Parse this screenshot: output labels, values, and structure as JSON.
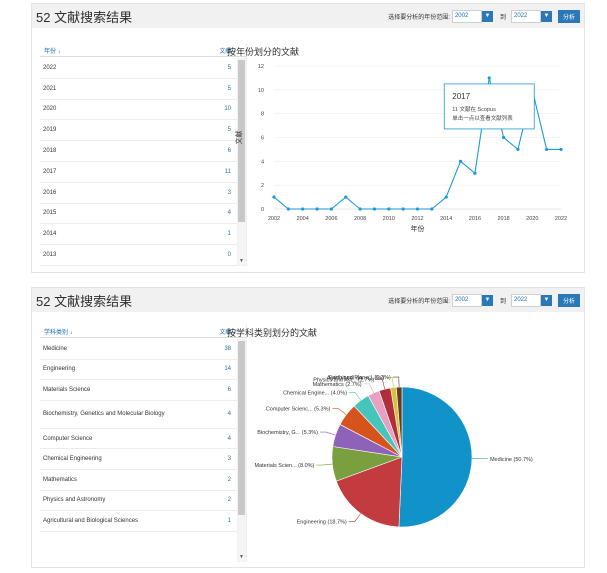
{
  "panel1": {
    "title": "52 文献搜索结果",
    "range_label": "选择要分析的年份范围:",
    "range_from": "2002",
    "range_to_label": "到",
    "range_to": "2022",
    "analyze_label": "分析",
    "col_label": "年份",
    "col_count": "文献",
    "sort_down_icon": "arrow-down",
    "sort_up_icon": "arrow-up",
    "rows": [
      {
        "label": "2022",
        "count": "5"
      },
      {
        "label": "2021",
        "count": "5"
      },
      {
        "label": "2020",
        "count": "10"
      },
      {
        "label": "2019",
        "count": "5"
      },
      {
        "label": "2018",
        "count": "6"
      },
      {
        "label": "2017",
        "count": "11"
      },
      {
        "label": "2016",
        "count": "3"
      },
      {
        "label": "2015",
        "count": "4"
      },
      {
        "label": "2014",
        "count": "1"
      },
      {
        "label": "2013",
        "count": "0"
      }
    ],
    "chart_title": "按年份划分的文献",
    "tooltip": {
      "year": "2017",
      "line1": "11 文献在 Scopus",
      "line2": "单击一点以查看文献列表"
    }
  },
  "panel2": {
    "title": "52 文献搜索结果",
    "range_label": "选择要分析的年份范围:",
    "range_from": "2002",
    "range_to_label": "到",
    "range_to": "2022",
    "analyze_label": "分析",
    "col_label": "学科类别",
    "col_count": "文献",
    "sort_down_icon": "arrow-down",
    "rows": [
      {
        "label": "Medicine",
        "count": "38"
      },
      {
        "label": "Engineering",
        "count": "14"
      },
      {
        "label": "Materials Science",
        "count": "6"
      },
      {
        "label": "Biochemistry, Genetics and Molecular Biology",
        "count": "4"
      },
      {
        "label": "Computer Science",
        "count": "4"
      },
      {
        "label": "Chemical Engineering",
        "count": "3"
      },
      {
        "label": "Mathematics",
        "count": "2"
      },
      {
        "label": "Physics and Astronomy",
        "count": "2"
      },
      {
        "label": "Agricultural and Biological Sciences",
        "count": "1"
      }
    ],
    "chart_title": "按学科类别划分的文献"
  },
  "chart_data": [
    {
      "type": "line",
      "title": "按年份划分的文献",
      "xlabel": "年份",
      "ylabel": "文献",
      "x": [
        2002,
        2003,
        2004,
        2005,
        2006,
        2007,
        2008,
        2009,
        2010,
        2011,
        2012,
        2013,
        2014,
        2015,
        2016,
        2017,
        2018,
        2019,
        2020,
        2021,
        2022
      ],
      "y": [
        1,
        0,
        0,
        0,
        0,
        1,
        0,
        0,
        0,
        0,
        0,
        0,
        1,
        4,
        3,
        11,
        6,
        5,
        10,
        5,
        5
      ],
      "xticks": [
        2002,
        2004,
        2006,
        2008,
        2010,
        2012,
        2014,
        2016,
        2018,
        2020,
        2022
      ],
      "yticks": [
        0,
        2,
        4,
        6,
        8,
        10,
        12
      ],
      "ylim": [
        0,
        12
      ],
      "grid": "horizontal",
      "color": "#1a9ad6"
    },
    {
      "type": "pie",
      "title": "按学科类别划分的文献",
      "slices": [
        {
          "label": "Medicine (50.7%)",
          "value": 50.7,
          "color": "#1192c9"
        },
        {
          "label": "Engineering (18.7%)",
          "value": 18.7,
          "color": "#c23b3f"
        },
        {
          "label": "Materials Scien... (8.0%)",
          "value": 8.0,
          "color": "#7a9f3e"
        },
        {
          "label": "Biochemistry, G... (5.3%)",
          "value": 5.3,
          "color": "#8d62b8"
        },
        {
          "label": "Computer Scienc... (5.3%)",
          "value": 5.3,
          "color": "#d7531e"
        },
        {
          "label": "Chemical Engine... (4.0%)",
          "value": 4.0,
          "color": "#47c5bd"
        },
        {
          "label": "Mathematics (2.7%)",
          "value": 2.7,
          "color": "#e8a0c1"
        },
        {
          "label": "Physics and Ast... (2.7%)",
          "value": 2.7,
          "color": "#b02d3a"
        },
        {
          "label": "Agricultural an... (1.3%)",
          "value": 1.3,
          "color": "#d8c23c"
        },
        {
          "label": "Earth and Plane... (1.3%)",
          "value": 1.3,
          "color": "#6a3a1e"
        }
      ]
    }
  ]
}
